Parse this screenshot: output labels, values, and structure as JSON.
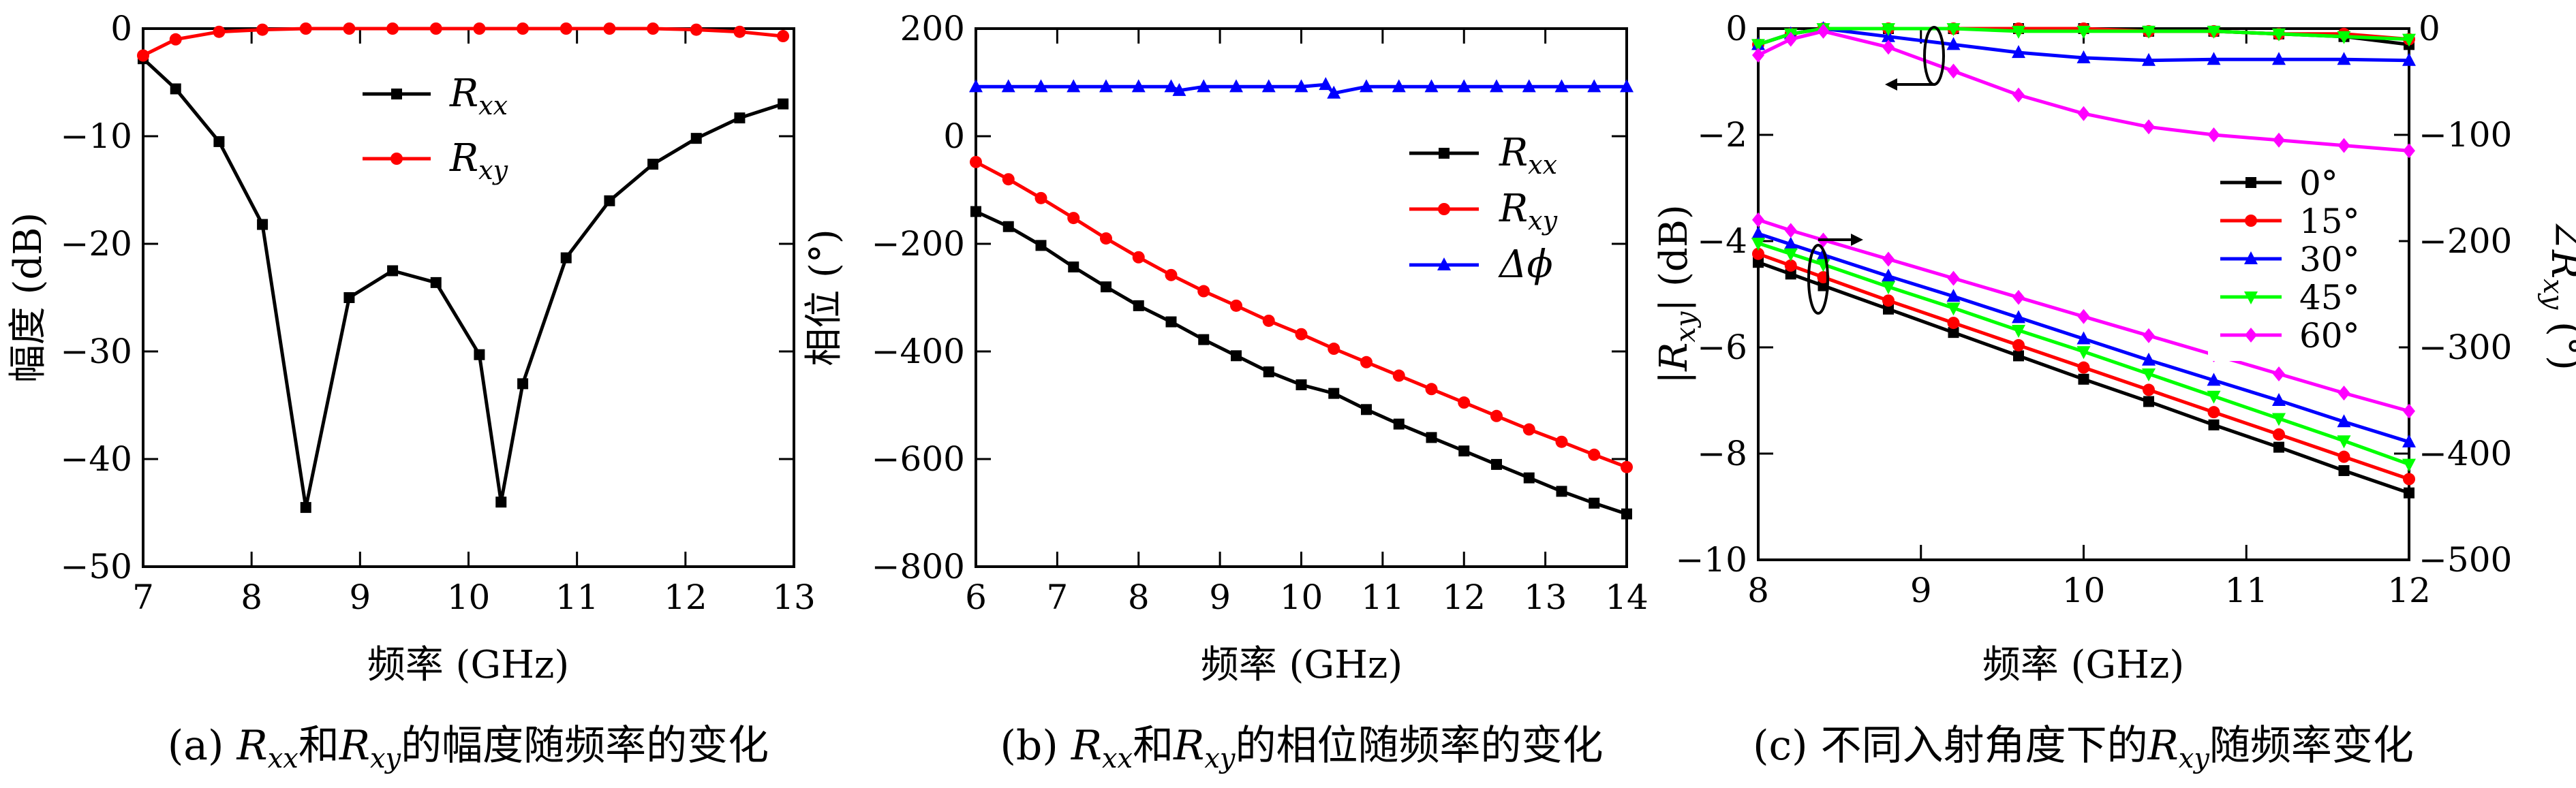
{
  "chart_data": [
    {
      "id": "a",
      "type": "line",
      "xlabel": "频率 (GHz)",
      "ylabel": "幅度 (dB)",
      "xlim": [
        7,
        13
      ],
      "ylim": [
        -50,
        0
      ],
      "xticks": [
        7,
        8,
        9,
        10,
        11,
        12,
        13
      ],
      "yticks": [
        0,
        -10,
        -20,
        -30,
        -40,
        -50
      ],
      "legend_position": "top-center",
      "caption": "(a) Rxx和Rxy的幅度随频率的变化",
      "series": [
        {
          "name": "Rxx",
          "color": "#000000",
          "marker": "square",
          "x": [
            7.0,
            7.3,
            7.7,
            8.1,
            8.5,
            8.9,
            9.3,
            9.7,
            10.1,
            10.3,
            10.5,
            10.9,
            11.3,
            11.7,
            12.1,
            12.5,
            12.9
          ],
          "y": [
            -2.8,
            -5.6,
            -10.5,
            -18.2,
            -44.5,
            -25.0,
            -22.5,
            -23.6,
            -30.3,
            -44.0,
            -33.0,
            -21.3,
            -16.0,
            -12.6,
            -10.2,
            -8.3,
            -7.0
          ]
        },
        {
          "name": "Rxy",
          "color": "#ff0000",
          "marker": "circle",
          "x": [
            7.0,
            7.3,
            7.7,
            8.1,
            8.5,
            8.9,
            9.3,
            9.7,
            10.1,
            10.5,
            10.9,
            11.3,
            11.7,
            12.1,
            12.5,
            12.9
          ],
          "y": [
            -2.5,
            -1.0,
            -0.3,
            -0.1,
            0.0,
            0.0,
            0.0,
            0.0,
            0.0,
            0.0,
            0.0,
            0.0,
            0.0,
            -0.1,
            -0.3,
            -0.7
          ]
        }
      ]
    },
    {
      "id": "b",
      "type": "line",
      "xlabel": "频率 (GHz)",
      "ylabel": "相位 (°)",
      "xlim": [
        6,
        14
      ],
      "ylim": [
        -800,
        200
      ],
      "xticks": [
        6,
        7,
        8,
        9,
        10,
        11,
        12,
        13,
        14
      ],
      "yticks": [
        200,
        0,
        -200,
        -400,
        -600,
        -800
      ],
      "legend_position": "top-right",
      "caption": "(b) Rxx和Rxy的相位随频率的变化",
      "series": [
        {
          "name": "Rxx",
          "color": "#000000",
          "marker": "square",
          "x": [
            6.0,
            6.4,
            6.8,
            7.2,
            7.6,
            8.0,
            8.4,
            8.8,
            9.2,
            9.6,
            10.0,
            10.4,
            10.8,
            11.2,
            11.6,
            12.0,
            12.4,
            12.8,
            13.2,
            13.6,
            14.0
          ],
          "y": [
            -140,
            -168,
            -203,
            -243,
            -280,
            -315,
            -345,
            -378,
            -408,
            -438,
            -462,
            -478,
            -508,
            -535,
            -560,
            -585,
            -610,
            -635,
            -660,
            -682,
            -702
          ]
        },
        {
          "name": "Rxy",
          "color": "#ff0000",
          "marker": "circle",
          "x": [
            6.0,
            6.4,
            6.8,
            7.2,
            7.6,
            8.0,
            8.4,
            8.8,
            9.2,
            9.6,
            10.0,
            10.4,
            10.8,
            11.2,
            11.6,
            12.0,
            12.4,
            12.8,
            13.2,
            13.6,
            14.0
          ],
          "y": [
            -48,
            -80,
            -115,
            -152,
            -190,
            -225,
            -258,
            -288,
            -315,
            -343,
            -368,
            -395,
            -420,
            -445,
            -470,
            -495,
            -520,
            -545,
            -568,
            -592,
            -615
          ]
        },
        {
          "name": "Δϕ",
          "color": "#0000ff",
          "marker": "triangle",
          "x": [
            6.0,
            6.4,
            6.8,
            7.2,
            7.6,
            8.0,
            8.4,
            8.5,
            8.8,
            9.2,
            9.6,
            10.0,
            10.3,
            10.4,
            10.8,
            11.2,
            11.6,
            12.0,
            12.4,
            12.8,
            13.2,
            13.6,
            14.0
          ],
          "y": [
            92,
            92,
            92,
            92,
            92,
            92,
            92,
            85,
            92,
            92,
            92,
            92,
            96,
            80,
            92,
            92,
            92,
            92,
            92,
            92,
            92,
            92,
            92
          ]
        }
      ]
    },
    {
      "id": "c",
      "type": "line",
      "xlabel": "频率 (GHz)",
      "ylabel": "|Rxy| (dB)",
      "ylabel_right": "∠Rxy (°)",
      "xlim": [
        8,
        12
      ],
      "ylim": [
        -10,
        0
      ],
      "ylim_right": [
        -500,
        0
      ],
      "xticks": [
        8,
        9,
        10,
        11,
        12
      ],
      "yticks": [
        0,
        -2,
        -4,
        -6,
        -8,
        -10
      ],
      "yticks_right": [
        0,
        -100,
        -200,
        -300,
        -400,
        -500
      ],
      "legend_position": "right",
      "caption": "(c) 不同入射角度下的Rxy随频率变化",
      "x": [
        8.0,
        8.2,
        8.4,
        8.8,
        9.2,
        9.6,
        10.0,
        10.4,
        10.8,
        11.2,
        11.6,
        12.0
      ],
      "series": [
        {
          "name": "0°",
          "color": "#000000",
          "marker": "square",
          "magnitude": [
            -0.3,
            -0.1,
            0.0,
            0.0,
            0.0,
            0.0,
            0.0,
            -0.05,
            -0.05,
            -0.1,
            -0.15,
            -0.3
          ],
          "phase": [
            -220,
            -231,
            -242,
            -264,
            -286,
            -308,
            -330,
            -351,
            -373,
            -394,
            -416,
            -437
          ]
        },
        {
          "name": "15°",
          "color": "#ff0000",
          "marker": "circle",
          "magnitude": [
            -0.3,
            -0.1,
            0.0,
            0.0,
            0.0,
            0.0,
            0.0,
            -0.05,
            -0.05,
            -0.1,
            -0.1,
            -0.2
          ],
          "phase": [
            -212,
            -223,
            -234,
            -256,
            -277,
            -298,
            -319,
            -340,
            -361,
            -382,
            -403,
            -424
          ]
        },
        {
          "name": "30°",
          "color": "#0000ff",
          "marker": "triangle",
          "magnitude": [
            -0.3,
            -0.1,
            0.0,
            -0.15,
            -0.3,
            -0.45,
            -0.55,
            -0.6,
            -0.58,
            -0.58,
            -0.58,
            -0.6
          ],
          "phase": [
            -193,
            -203,
            -213,
            -233,
            -252,
            -272,
            -292,
            -312,
            -331,
            -350,
            -370,
            -389
          ]
        },
        {
          "name": "45°",
          "color": "#00ff00",
          "marker": "triangle-down",
          "magnitude": [
            -0.3,
            -0.1,
            0.0,
            0.0,
            0.0,
            -0.05,
            -0.05,
            -0.05,
            -0.05,
            -0.1,
            -0.15,
            -0.2
          ],
          "phase": [
            -202,
            -212,
            -222,
            -243,
            -263,
            -284,
            -304,
            -325,
            -346,
            -367,
            -388,
            -410
          ]
        },
        {
          "name": "60°",
          "color": "#ff00ff",
          "marker": "diamond",
          "magnitude": [
            -0.5,
            -0.2,
            -0.05,
            -0.35,
            -0.8,
            -1.25,
            -1.6,
            -1.85,
            -2.0,
            -2.1,
            -2.2,
            -2.3
          ],
          "phase": [
            -180,
            -190,
            -199,
            -217,
            -235,
            -253,
            -271,
            -289,
            -307,
            -325,
            -343,
            -360
          ]
        }
      ]
    }
  ]
}
